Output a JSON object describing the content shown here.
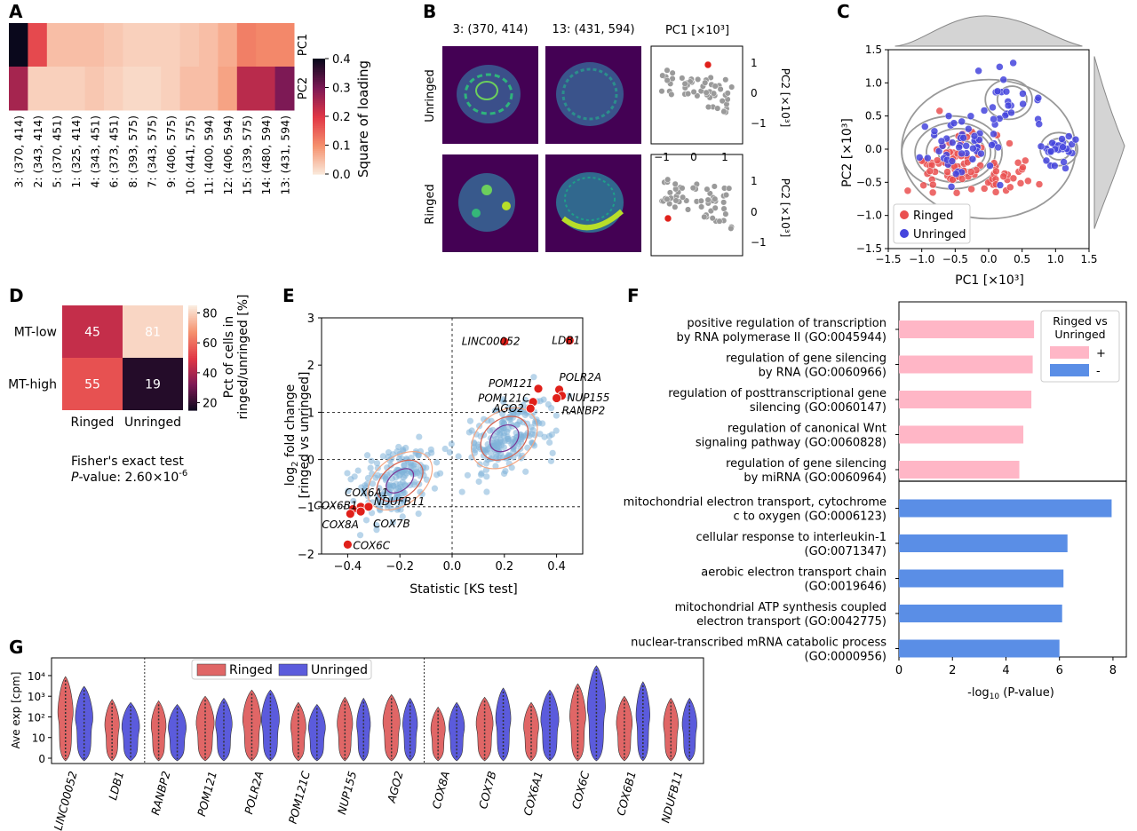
{
  "panels": {
    "A": {
      "letter": "A",
      "columns": [
        "3: (370, 414)",
        "2: (343, 414)",
        "5: (370, 451)",
        "1: (325, 414)",
        "4: (343, 451)",
        "6: (373, 451)",
        "8: (393, 575)",
        "7: (343, 575)",
        "9: (406, 575)",
        "10: (441, 575)",
        "11: (400, 594)",
        "12: (406, 594)",
        "15: (339, 575)",
        "14: (480, 594)",
        "13: (431, 594)"
      ],
      "rows": [
        "PC1",
        "PC2"
      ],
      "values": [
        [
          0.4,
          0.18,
          0.05,
          0.05,
          0.05,
          0.04,
          0.03,
          0.03,
          0.03,
          0.04,
          0.05,
          0.07,
          0.12,
          0.11,
          0.11
        ],
        [
          0.26,
          0.03,
          0.03,
          0.03,
          0.04,
          0.03,
          0.02,
          0.02,
          0.03,
          0.05,
          0.05,
          0.08,
          0.24,
          0.24,
          0.3
        ]
      ],
      "colorbar": {
        "label": "Square of loading",
        "ticks": [
          "0.0",
          "0.1",
          "0.2",
          "0.3",
          "0.4"
        ]
      }
    },
    "B": {
      "letter": "B",
      "col_titles": [
        "3: (370, 414)",
        "13: (431, 594)"
      ],
      "row_labels": [
        "Unringed",
        "Ringed"
      ],
      "scatter_title": "PC1 [×10³]",
      "ylabel": "PC2 [×10³]",
      "yticks": [
        "1",
        "0",
        "−1"
      ],
      "xticks": [
        "−1",
        "0",
        "1"
      ]
    },
    "C": {
      "letter": "C",
      "xlabel": "PC1 [×10³]",
      "ylabel": "PC2 [×10³]",
      "xticks": [
        "−1.5",
        "−1.0",
        "−0.5",
        "0.0",
        "0.5",
        "1.0",
        "1.5"
      ],
      "yticks": [
        "1.5",
        "1.0",
        "0.5",
        "0.0",
        "−0.5",
        "−1.0",
        "−1.5"
      ],
      "legend": [
        "Ringed",
        "Unringed"
      ]
    },
    "D": {
      "letter": "D",
      "rows": [
        "MT-low",
        "MT-high"
      ],
      "cols": [
        "Ringed",
        "Unringed"
      ],
      "values": [
        [
          45,
          81
        ],
        [
          55,
          19
        ]
      ],
      "value_labels": [
        [
          "45",
          "81"
        ],
        [
          "55",
          "19"
        ]
      ],
      "colorbar": {
        "label": "Pct of cells in ringed/unringed [%]",
        "ticks": [
          "80",
          "60",
          "40",
          "20"
        ]
      },
      "test_line1": "Fisher's exact test",
      "test_line2": "P-value: 2.60×10⁻⁶"
    },
    "E": {
      "letter": "E",
      "xlabel": "Statistic [KS test]",
      "ylabel1": "log₂ fold change",
      "ylabel2": "[ringed vs unringed]",
      "xticks": [
        "−0.4",
        "−0.2",
        "0.0",
        "0.2",
        "0.4"
      ],
      "yticks": [
        "3",
        "2",
        "1",
        "0",
        "−1",
        "−2"
      ]
    },
    "F": {
      "letter": "F",
      "xlabel": "-log₁₀ (P-value)",
      "xticks": [
        "0",
        "2",
        "4",
        "6",
        "8"
      ],
      "legend_title": "Ringed vs Unringed",
      "legend_items": [
        "+",
        "-"
      ]
    },
    "G": {
      "letter": "G",
      "ylabel": "Ave exp [cpm]",
      "yticks": [
        "10⁴",
        "10³",
        "10²",
        "10",
        "0"
      ],
      "legend": [
        "Ringed",
        "Unringed"
      ]
    }
  },
  "chart_data": [
    {
      "panel": "E",
      "type": "scatter",
      "xlim": [
        -0.5,
        0.5
      ],
      "ylim": [
        -2,
        3
      ],
      "highlighted": [
        {
          "label": "LINC00052",
          "x": 0.2,
          "y": 2.5
        },
        {
          "label": "LDB1",
          "x": 0.45,
          "y": 2.52
        },
        {
          "label": "POLR2A",
          "x": 0.41,
          "y": 1.48
        },
        {
          "label": "POM121",
          "x": 0.33,
          "y": 1.5
        },
        {
          "label": "NUP155",
          "x": 0.42,
          "y": 1.35
        },
        {
          "label": "POM121C",
          "x": 0.31,
          "y": 1.22
        },
        {
          "label": "RANBP2",
          "x": 0.4,
          "y": 1.3
        },
        {
          "label": "AGO2",
          "x": 0.3,
          "y": 1.08
        },
        {
          "label": "COX6A1",
          "x": -0.35,
          "y": -1.0
        },
        {
          "label": "COX6B1",
          "x": -0.38,
          "y": -1.05
        },
        {
          "label": "NDUFB11",
          "x": -0.32,
          "y": -1.0
        },
        {
          "label": "COX7B",
          "x": -0.35,
          "y": -1.1
        },
        {
          "label": "COX8A",
          "x": -0.39,
          "y": -1.15
        },
        {
          "label": "COX6C",
          "x": -0.4,
          "y": -1.8
        }
      ]
    },
    {
      "panel": "F",
      "type": "bar",
      "orientation": "horizontal",
      "xlim": [
        0,
        8.5
      ],
      "categories": [
        "positive regulation of transcription|by RNA polymerase II (GO:0045944)",
        "regulation of gene silencing|by RNA (GO:0060966)",
        "regulation of posttranscriptional gene|silencing (GO:0060147)",
        "regulation of canonical Wnt|signaling pathway (GO:0060828)",
        "regulation of gene silencing|by miRNA (GO:0060964)",
        "mitochondrial electron transport, cytochrome|c to oxygen (GO:0006123)",
        "cellular response to interleukin-1|(GO:0071347)",
        "aerobic electron transport chain|(GO:0019646)",
        "mitochondrial ATP synthesis coupled|electron transport (GO:0042775)",
        "nuclear-transcribed mRNA catabolic process|(GO:0000956)"
      ],
      "values": [
        5.05,
        5.0,
        4.95,
        4.65,
        4.5,
        7.95,
        6.3,
        6.15,
        6.1,
        6.0
      ],
      "groups": [
        "+",
        "+",
        "+",
        "+",
        "+",
        "-",
        "-",
        "-",
        "-",
        "-"
      ],
      "colors": {
        "+": "#ffb6c6",
        "-": "#5a8ee6"
      }
    },
    {
      "panel": "G",
      "type": "violin",
      "genes": [
        "LINC00052",
        "LDB1",
        "RANBP2",
        "POM121",
        "POLR2A",
        "POM121C",
        "NUP155",
        "AGO2",
        "COX8A",
        "COX7B",
        "COX6A1",
        "COX6C",
        "COX6B1",
        "NDUFB11"
      ],
      "series": [
        {
          "name": "Ringed",
          "color": "#e06666",
          "top": [
            9000,
            700,
            600,
            1000,
            2000,
            500,
            900,
            1200,
            300,
            900,
            500,
            4000,
            1000,
            800
          ]
        },
        {
          "name": "Unringed",
          "color": "#5b5bdc",
          "top": [
            3000,
            500,
            400,
            800,
            2000,
            400,
            800,
            800,
            500,
            2500,
            2000,
            30000,
            5000,
            800
          ]
        }
      ]
    }
  ]
}
